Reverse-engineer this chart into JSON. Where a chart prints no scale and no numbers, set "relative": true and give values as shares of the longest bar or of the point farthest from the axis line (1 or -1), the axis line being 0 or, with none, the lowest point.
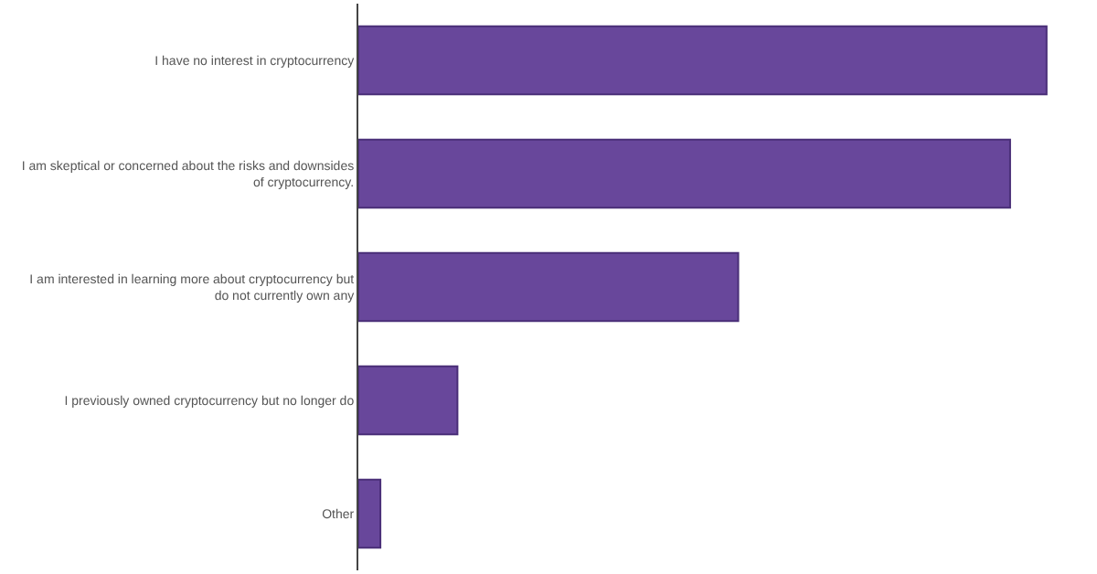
{
  "chart_data": {
    "type": "bar",
    "orientation": "horizontal",
    "relative": true,
    "categories": [
      "I have no interest in cryptocurrency",
      "I am skeptical or concerned about the risks and downsides of cryptocurrency.",
      "I am interested in learning more about cryptocurrency but do not currently own any",
      "I previously owned cryptocurrency but no longer do",
      "Other"
    ],
    "values": [
      1,
      0.947,
      0.552,
      0.144,
      0.032
    ],
    "color": "#68479b"
  }
}
